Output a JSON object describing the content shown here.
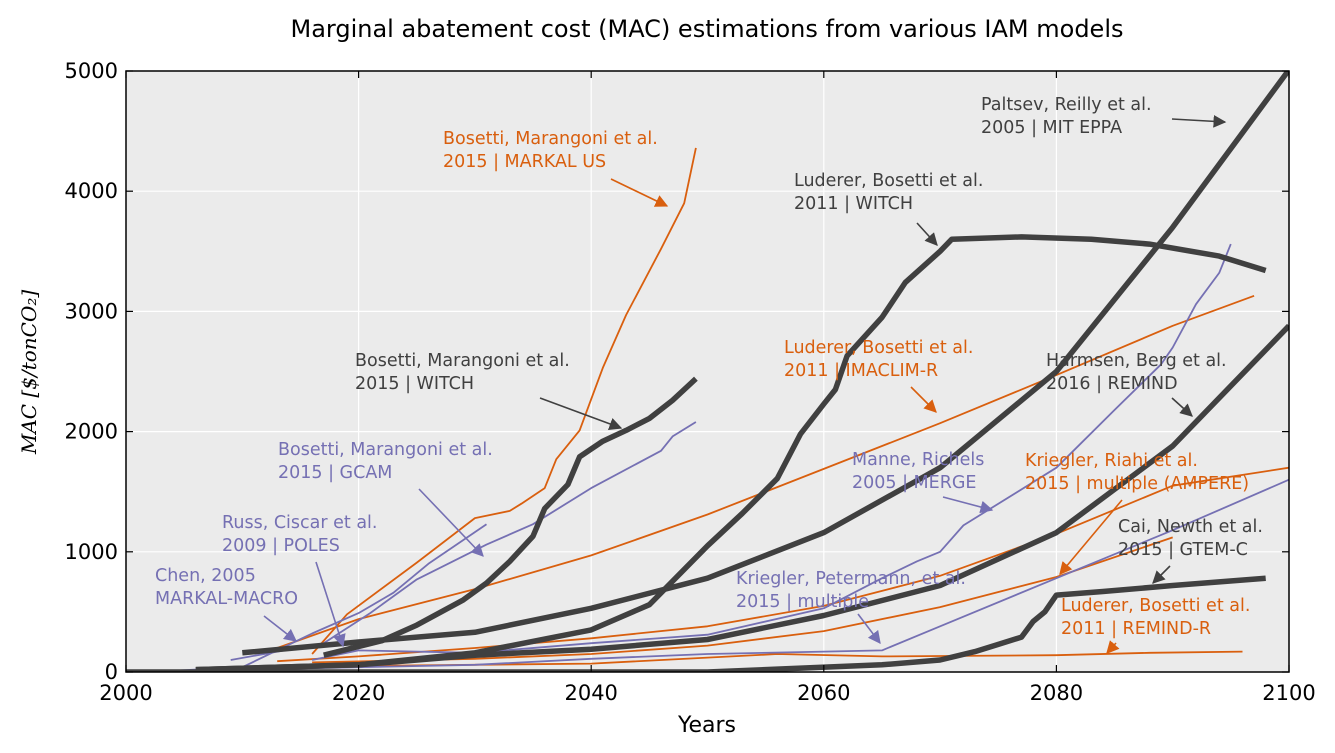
{
  "chart_data": {
    "type": "line",
    "title": "Marginal abatement cost (MAC) estimations from various IAM models",
    "xlabel": "Years",
    "ylabel": "MAC [$/tonCO₂]",
    "xlim": [
      2000,
      2100
    ],
    "ylim": [
      0,
      5000
    ],
    "xticks": [
      "2000",
      "2020",
      "2040",
      "2060",
      "2080",
      "2100"
    ],
    "yticks": [
      "0",
      "1000",
      "2000",
      "3000",
      "4000",
      "5000"
    ],
    "grid": true,
    "legend": "none",
    "colors": {
      "gray": "#404040",
      "orange": "#d95f0e",
      "purple": "#7570b3",
      "background": "#ebebeb"
    },
    "series": [
      {
        "color": "gray",
        "style": "thick",
        "x": [
          2010,
          2020,
          2030,
          2040,
          2050,
          2060,
          2070,
          2080,
          2090,
          2100
        ],
        "y": [
          160,
          250,
          330,
          530,
          780,
          1160,
          1700,
          2500,
          3700,
          5010
        ]
      },
      {
        "color": "gray",
        "style": "thick",
        "x": [
          2017,
          2022,
          2025,
          2029,
          2031,
          2033,
          2035,
          2036,
          2038,
          2039,
          2041,
          2043,
          2045,
          2047,
          2049
        ],
        "y": [
          140,
          260,
          390,
          600,
          740,
          920,
          1130,
          1360,
          1560,
          1790,
          1920,
          2010,
          2110,
          2260,
          2440
        ]
      },
      {
        "color": "gray",
        "style": "thick",
        "x": [
          2006,
          2020,
          2030,
          2040,
          2045,
          2050,
          2053,
          2056,
          2058,
          2060,
          2061,
          2062,
          2065,
          2067,
          2070,
          2071,
          2077,
          2083,
          2088,
          2094,
          2098
        ],
        "y": [
          20,
          60,
          160,
          350,
          560,
          1050,
          1320,
          1610,
          1980,
          2230,
          2350,
          2630,
          2950,
          3240,
          3500,
          3600,
          3620,
          3600,
          3560,
          3460,
          3340
        ]
      },
      {
        "color": "gray",
        "style": "thick",
        "x": [
          2006,
          2020,
          2030,
          2040,
          2050,
          2060,
          2070,
          2080,
          2090,
          2100
        ],
        "y": [
          20,
          60,
          140,
          190,
          270,
          470,
          720,
          1160,
          1880,
          2880
        ]
      },
      {
        "color": "gray",
        "style": "thick",
        "x": [
          2000,
          2050,
          2065,
          2070,
          2073,
          2075,
          2077,
          2078,
          2079,
          2080,
          2084,
          2090,
          2098
        ],
        "y": [
          0,
          0,
          60,
          100,
          170,
          230,
          290,
          420,
          500,
          640,
          670,
          720,
          780
        ]
      },
      {
        "color": "orange",
        "style": "thin",
        "x": [
          2016,
          2019,
          2025,
          2030,
          2033,
          2034,
          2036,
          2037,
          2039,
          2041,
          2043,
          2046,
          2048,
          2049
        ],
        "y": [
          150,
          480,
          910,
          1280,
          1340,
          1400,
          1530,
          1770,
          2010,
          2530,
          2970,
          3520,
          3900,
          4360
        ]
      },
      {
        "color": "orange",
        "style": "thin",
        "x": [
          2013,
          2020,
          2030,
          2040,
          2050,
          2060,
          2070,
          2080,
          2090,
          2097
        ],
        "y": [
          200,
          440,
          690,
          970,
          1310,
          1690,
          2070,
          2470,
          2880,
          3130
        ]
      },
      {
        "color": "orange",
        "style": "thin",
        "x": [
          2013,
          2020,
          2030,
          2040,
          2050,
          2060,
          2070,
          2080,
          2090,
          2100
        ],
        "y": [
          90,
          130,
          200,
          280,
          380,
          550,
          800,
          1150,
          1550,
          1700
        ]
      },
      {
        "color": "orange",
        "style": "thin",
        "x": [
          2016,
          2030,
          2040,
          2050,
          2060,
          2070,
          2080,
          2090
        ],
        "y": [
          80,
          110,
          150,
          220,
          340,
          540,
          790,
          1120
        ]
      },
      {
        "color": "orange",
        "style": "thin",
        "x": [
          2020,
          2040,
          2056,
          2065,
          2080,
          2088,
          2096
        ],
        "y": [
          50,
          70,
          150,
          130,
          140,
          160,
          170
        ]
      },
      {
        "color": "purple",
        "style": "thin",
        "x": [
          2009,
          2017,
          2021,
          2025,
          2031,
          2035,
          2040,
          2046,
          2047,
          2049
        ],
        "y": [
          100,
          240,
          490,
          770,
          1060,
          1230,
          1530,
          1840,
          1960,
          2080
        ]
      },
      {
        "color": "purple",
        "style": "thin",
        "x": [
          2002,
          2010,
          2016,
          2020,
          2023,
          2026,
          2031
        ],
        "y": [
          0,
          40,
          320,
          490,
          660,
          900,
          1230
        ]
      },
      {
        "color": "purple",
        "style": "thin",
        "x": [
          2016,
          2020,
          2030,
          2040,
          2050,
          2060,
          2065,
          2068,
          2070,
          2072,
          2080,
          2085,
          2089,
          2090,
          2092,
          2094,
          2095
        ],
        "y": [
          100,
          180,
          160,
          240,
          310,
          530,
          780,
          920,
          1000,
          1220,
          1700,
          2180,
          2560,
          2700,
          3060,
          3320,
          3560
        ]
      },
      {
        "color": "purple",
        "style": "thin",
        "x": [
          2010,
          2030,
          2040,
          2050,
          2060,
          2065,
          2070,
          2080,
          2090,
          2100
        ],
        "y": [
          20,
          60,
          110,
          150,
          170,
          180,
          380,
          780,
          1180,
          1600
        ]
      }
    ],
    "annotations": [
      {
        "id": "paltsev",
        "color": "gray",
        "lines": [
          "Paltsev, Reilly et al.",
          "2005 | MIT EPPA"
        ]
      },
      {
        "id": "luderer-witch",
        "color": "gray",
        "lines": [
          "Luderer, Bosetti et al.",
          "2011 | WITCH"
        ]
      },
      {
        "id": "bosetti-witch",
        "color": "gray",
        "lines": [
          "Bosetti, Marangoni et al.",
          "2015 | WITCH"
        ]
      },
      {
        "id": "harmsen",
        "color": "gray",
        "lines": [
          "Harmsen, Berg et al.",
          "2016 | REMIND"
        ]
      },
      {
        "id": "cai",
        "color": "gray",
        "lines": [
          "Cai, Newth et al.",
          "2015 | GTEM-C"
        ]
      },
      {
        "id": "bosetti-markal",
        "color": "orange",
        "lines": [
          "Bosetti, Marangoni et al.",
          "2015 | MARKAL US"
        ]
      },
      {
        "id": "luderer-imaclim",
        "color": "orange",
        "lines": [
          "Luderer, Bosetti et al.",
          "2011 | IMACLIM-R"
        ]
      },
      {
        "id": "kriegler-ampere",
        "color": "orange",
        "lines": [
          "Kriegler, Riahi et al.",
          "2015 | multiple (AMPERE)"
        ]
      },
      {
        "id": "luderer-remind",
        "color": "orange",
        "lines": [
          "Luderer, Bosetti et al.",
          "2011 | REMIND-R"
        ]
      },
      {
        "id": "bosetti-gcam",
        "color": "purple",
        "lines": [
          "Bosetti, Marangoni et al.",
          "2015 | GCAM"
        ]
      },
      {
        "id": "russ",
        "color": "purple",
        "lines": [
          "Russ, Ciscar et al.",
          "2009 | POLES"
        ]
      },
      {
        "id": "chen",
        "color": "purple",
        "lines": [
          "Chen, 2005",
          "MARKAL-MACRO"
        ]
      },
      {
        "id": "manne",
        "color": "purple",
        "lines": [
          "Manne, Richels",
          "2005 | MERGE"
        ]
      },
      {
        "id": "kriegler-multiple",
        "color": "purple",
        "lines": [
          "Kriegler, Petermann, et al.",
          "2015 | multiple"
        ]
      }
    ]
  }
}
